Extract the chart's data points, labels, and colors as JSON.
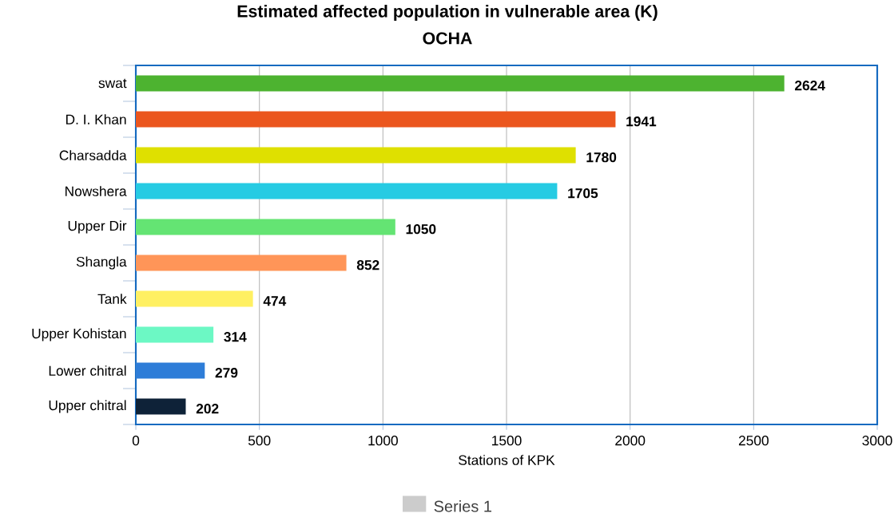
{
  "chart_data": {
    "type": "bar",
    "orientation": "horizontal",
    "title": "Estimated affected population in vulnerable area (K)",
    "subtitle": "OCHA",
    "xlabel": "Stations of KPK",
    "categories": [
      "swat",
      "D. I. Khan",
      "Charsadda",
      "Nowshera",
      "Upper Dir",
      "Shangla",
      "Tank",
      "Upper Kohistan",
      "Lower chitral",
      "Upper chitral"
    ],
    "series": [
      {
        "name": "Series 1",
        "color": "#cccccc",
        "values": [
          2624,
          1941,
          1780,
          1705,
          1050,
          852,
          474,
          314,
          279,
          202
        ],
        "colors": [
          "#4db330",
          "#eb561e",
          "#dfe000",
          "#26cbe3",
          "#64e473",
          "#ff9558",
          "#fff062",
          "#6cf8c4",
          "#2e7dd8",
          "#0e2238"
        ]
      }
    ],
    "xlim": [
      0,
      3000
    ],
    "xticks": [
      0,
      500,
      1000,
      1500,
      2000,
      2500,
      3000
    ],
    "grid": "x",
    "legend": "bottom",
    "data_labels": true
  }
}
